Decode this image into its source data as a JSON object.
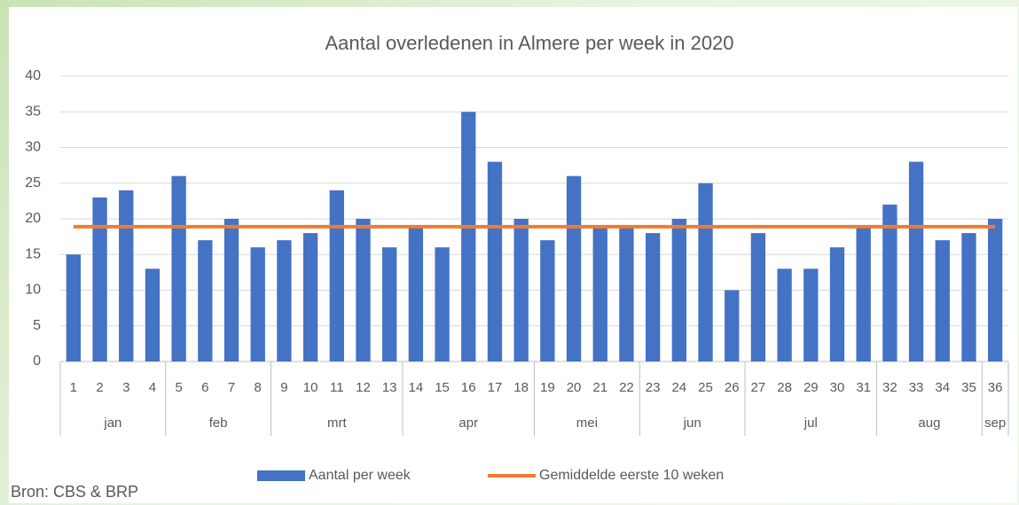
{
  "chart_data": {
    "type": "bar",
    "title": "Aantal overledenen in Almere per week in 2020",
    "source": "Bron: CBS & BRP",
    "categories": [
      "1",
      "2",
      "3",
      "4",
      "5",
      "6",
      "7",
      "8",
      "9",
      "10",
      "11",
      "12",
      "13",
      "14",
      "15",
      "16",
      "17",
      "18",
      "19",
      "20",
      "21",
      "22",
      "23",
      "24",
      "25",
      "26",
      "27",
      "28",
      "29",
      "30",
      "31",
      "32",
      "33",
      "34",
      "35",
      "36"
    ],
    "month_groups": [
      {
        "label": "jan",
        "count": 4
      },
      {
        "label": "feb",
        "count": 4
      },
      {
        "label": "mrt",
        "count": 5
      },
      {
        "label": "apr",
        "count": 5
      },
      {
        "label": "mei",
        "count": 4
      },
      {
        "label": "jun",
        "count": 4
      },
      {
        "label": "jul",
        "count": 5
      },
      {
        "label": "aug",
        "count": 4
      },
      {
        "label": "sep",
        "count": 1
      }
    ],
    "series": [
      {
        "name": "Aantal per week",
        "type": "bar",
        "color": "#4472c4",
        "values": [
          15,
          23,
          24,
          13,
          26,
          17,
          20,
          16,
          17,
          18,
          24,
          20,
          16,
          19,
          16,
          35,
          28,
          20,
          17,
          26,
          19,
          19,
          18,
          20,
          25,
          10,
          18,
          13,
          13,
          16,
          19,
          22,
          28,
          17,
          18,
          20
        ]
      },
      {
        "name": "Gemiddelde eerste 10 weken",
        "type": "line",
        "color": "#ed7d31",
        "values": [
          18.9,
          18.9,
          18.9,
          18.9,
          18.9,
          18.9,
          18.9,
          18.9,
          18.9,
          18.9,
          18.9,
          18.9,
          18.9,
          18.9,
          18.9,
          18.9,
          18.9,
          18.9,
          18.9,
          18.9,
          18.9,
          18.9,
          18.9,
          18.9,
          18.9,
          18.9,
          18.9,
          18.9,
          18.9,
          18.9,
          18.9,
          18.9,
          18.9,
          18.9,
          18.9,
          18.9
        ]
      }
    ],
    "ylim": [
      0,
      40
    ],
    "yticks": [
      0,
      5,
      10,
      15,
      20,
      25,
      30,
      35,
      40
    ],
    "grid": true,
    "legend": "bottom"
  }
}
